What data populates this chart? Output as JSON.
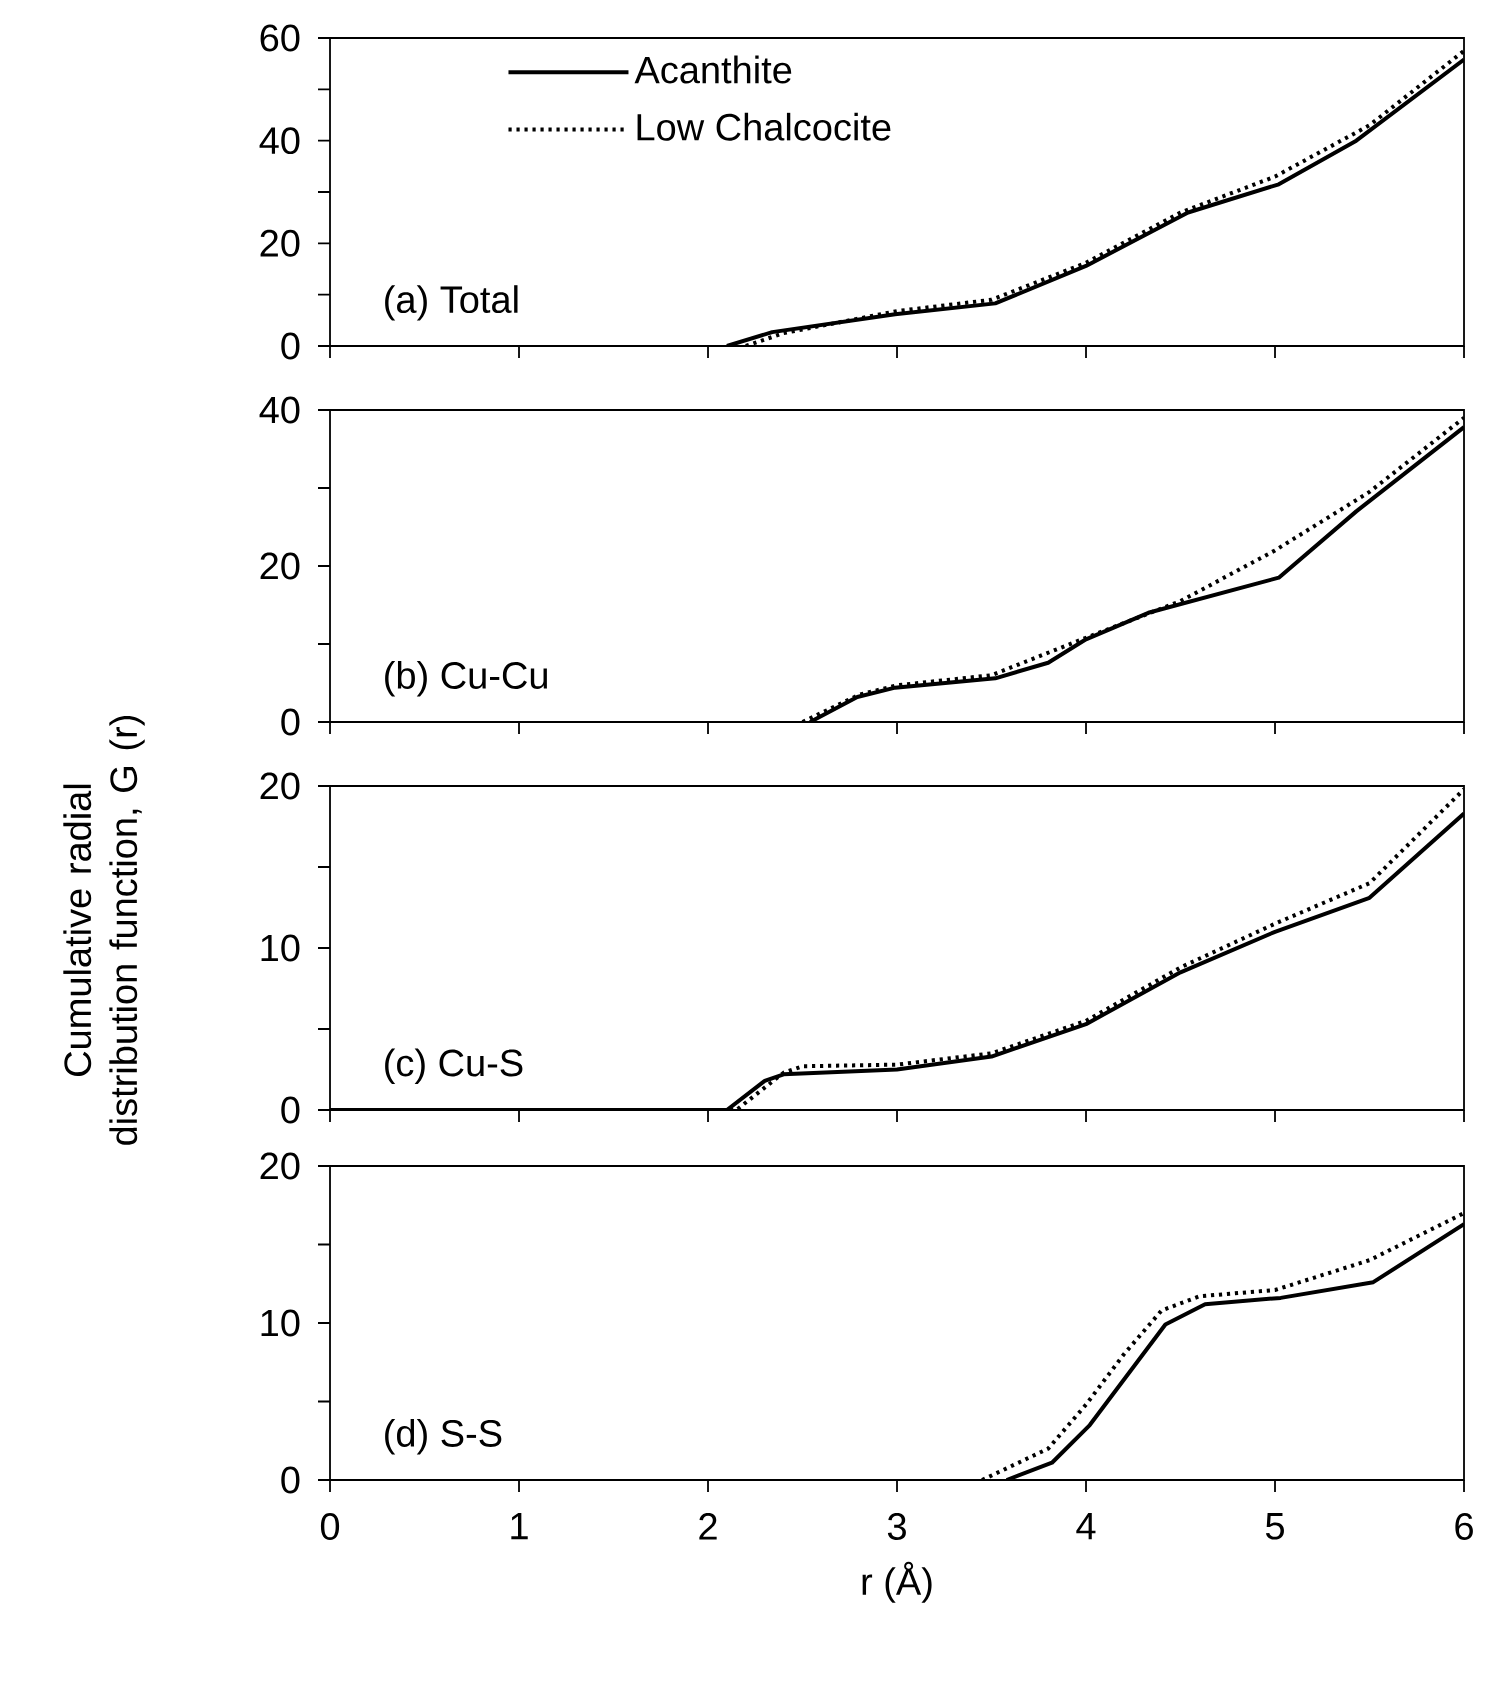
{
  "chart_data": [
    {
      "type": "line",
      "title": "(a) Total",
      "xlim": [
        0,
        6
      ],
      "xticks": [
        0,
        1,
        2,
        3,
        4,
        5,
        6
      ],
      "ylim": [
        0,
        60
      ],
      "yticks": [
        0,
        {
          "value": 10,
          "label": null
        },
        20,
        {
          "value": 30,
          "label": null
        },
        40,
        {
          "value": 50,
          "label": null
        },
        60
      ],
      "tick_labels": "y",
      "legend": "top left",
      "series": [
        {
          "name": "Acanthite",
          "color": "#000000",
          "line_style": "solid",
          "x": [
            2.1,
            2.34,
            2.99,
            3.52,
            4.0,
            4.54,
            5.02,
            5.43,
            6.0
          ],
          "values": [
            0,
            2.7,
            6.2,
            8.3,
            15.6,
            26,
            31.5,
            40,
            55.8
          ]
        },
        {
          "name": "Low Chalcocite",
          "color": "#000000",
          "line_style": "dotted",
          "x": [
            2.2,
            2.4,
            3.0,
            3.5,
            4.0,
            4.5,
            5.0,
            5.5,
            6.0
          ],
          "values": [
            0,
            2.5,
            6.8,
            9,
            16.2,
            26,
            33,
            43,
            57.5
          ]
        }
      ]
    },
    {
      "type": "line",
      "title": "(b) Cu-Cu",
      "ylabel": "Cumulative radial distribution function, G (r)",
      "xlim": [
        0,
        6
      ],
      "xticks": [
        0,
        1,
        2,
        3,
        4,
        5,
        6
      ],
      "ylim": [
        0,
        40
      ],
      "yticks": [
        0,
        {
          "value": 10,
          "label": null
        },
        20,
        {
          "value": 30,
          "label": null
        },
        40
      ],
      "tick_labels": "y",
      "series": [
        {
          "color": "#000000",
          "line_style": "solid",
          "x": [
            2.54,
            2.79,
            2.99,
            3.52,
            3.8,
            4.0,
            4.33,
            5.02,
            5.43,
            6.0
          ],
          "values": [
            0,
            3.2,
            4.4,
            5.6,
            7.6,
            10.6,
            14,
            18.5,
            27,
            37.8
          ]
        },
        {
          "color": "#000000",
          "line_style": "dotted",
          "x": [
            2.5,
            2.8,
            3.0,
            3.5,
            4.0,
            4.5,
            5.0,
            5.5,
            6.0
          ],
          "values": [
            0,
            3.5,
            4.7,
            6.0,
            10.8,
            15.5,
            22,
            29.5,
            39
          ]
        }
      ]
    },
    {
      "type": "line",
      "title": "(c) Cu-S",
      "xlim": [
        0,
        6
      ],
      "xticks": [
        0,
        1,
        2,
        3,
        4,
        5,
        6
      ],
      "ylim": [
        0,
        20
      ],
      "yticks": [
        0,
        {
          "value": 5,
          "label": null
        },
        10,
        {
          "value": 15,
          "label": null
        },
        20
      ],
      "tick_labels": "y",
      "series": [
        {
          "color": "#000000",
          "line_style": "solid",
          "x": [
            0,
            2.1,
            2.3,
            2.4,
            3.0,
            3.5,
            4.0,
            4.5,
            5.0,
            5.5,
            6.0
          ],
          "values": [
            0,
            0,
            1.8,
            2.2,
            2.5,
            3.3,
            5.3,
            8.5,
            11,
            13.1,
            18.3
          ]
        },
        {
          "color": "#000000",
          "line_style": "dotted",
          "x": [
            0,
            2.15,
            2.4,
            2.5,
            3.0,
            3.5,
            4.0,
            4.5,
            5.0,
            5.5,
            6.0
          ],
          "values": [
            0,
            0,
            2.3,
            2.7,
            2.8,
            3.5,
            5.5,
            8.8,
            11.5,
            14.0,
            19.8
          ]
        }
      ]
    },
    {
      "type": "line",
      "title": "(d) S-S",
      "xlabel": "r (Å)",
      "xlim": [
        0,
        6
      ],
      "xticks": [
        0,
        1,
        2,
        3,
        4,
        5,
        6
      ],
      "ylim": [
        0,
        20
      ],
      "yticks": [
        0,
        {
          "value": 5,
          "label": null
        },
        10,
        {
          "value": 15,
          "label": null
        },
        20
      ],
      "series": [
        {
          "color": "#000000",
          "line_style": "solid",
          "x": [
            3.58,
            3.82,
            4.02,
            4.22,
            4.42,
            4.63,
            5.03,
            5.52,
            6.0
          ],
          "values": [
            0,
            1.1,
            3.5,
            6.7,
            9.9,
            11.2,
            11.6,
            12.6,
            16.3
          ]
        },
        {
          "color": "#000000",
          "line_style": "dotted",
          "x": [
            3.45,
            3.8,
            4.0,
            4.2,
            4.4,
            4.6,
            5.0,
            5.5,
            6.0
          ],
          "values": [
            0,
            2.0,
            4.8,
            8.0,
            10.8,
            11.7,
            12.1,
            14.0,
            17.0
          ]
        }
      ]
    }
  ]
}
